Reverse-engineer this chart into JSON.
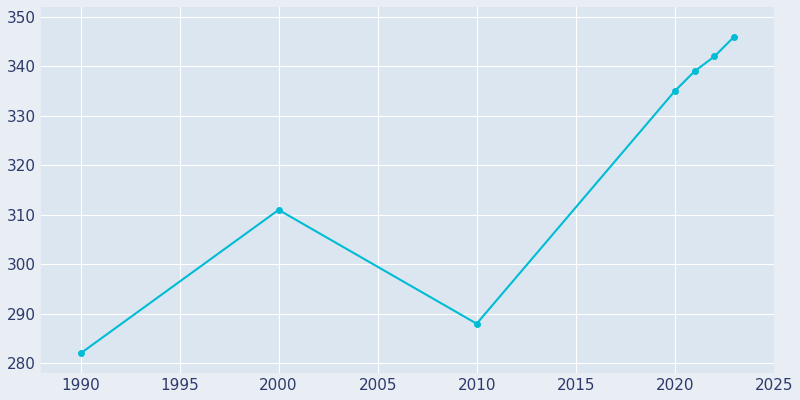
{
  "years": [
    1990,
    2000,
    2010,
    2020,
    2021,
    2022,
    2023
  ],
  "population": [
    282,
    311,
    288,
    335,
    339,
    342,
    346
  ],
  "line_color": "#00bcd4",
  "marker_color": "#00bcd4",
  "bg_color": "#e8eef4",
  "plot_bg_color": "#dce6f0",
  "grid_color": "#ffffff",
  "tick_color": "#2d3a6b",
  "xlim": [
    1988,
    2025
  ],
  "ylim": [
    278,
    352
  ],
  "xticks": [
    1990,
    1995,
    2000,
    2005,
    2010,
    2015,
    2020,
    2025
  ],
  "yticks": [
    280,
    290,
    300,
    310,
    320,
    330,
    340,
    350
  ]
}
